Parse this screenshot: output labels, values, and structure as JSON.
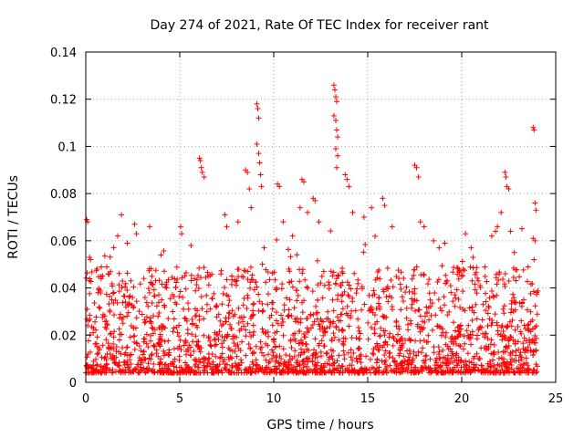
{
  "chart_data": {
    "type": "scatter",
    "title": "Day 274 of 2021, Rate Of TEC Index for receiver rant",
    "xlabel": "GPS time / hours",
    "ylabel": "ROTI / TECUs",
    "xlim": [
      0,
      25
    ],
    "ylim": [
      0,
      0.14
    ],
    "xticks": [
      "0",
      "5",
      "10",
      "15",
      "20",
      "25"
    ],
    "yticks": [
      "0",
      "0.02",
      "0.04",
      "0.06",
      "0.08",
      "0.1",
      "0.12",
      "0.14"
    ],
    "grid": true,
    "marker": "plus",
    "color": "#ff0000",
    "series": [
      {
        "name": "ROTI",
        "points": [
          [
            0.05,
            0.069
          ],
          [
            0.1,
            0.068
          ],
          [
            0.2,
            0.053
          ],
          [
            0.25,
            0.052
          ],
          [
            0.6,
            0.048
          ],
          [
            1.2,
            0.046
          ],
          [
            1.7,
            0.062
          ],
          [
            1.9,
            0.071
          ],
          [
            2.6,
            0.067
          ],
          [
            2.7,
            0.063
          ],
          [
            3.4,
            0.066
          ],
          [
            4.0,
            0.054
          ],
          [
            5.05,
            0.066
          ],
          [
            5.1,
            0.063
          ],
          [
            5.6,
            0.058
          ],
          [
            6.05,
            0.095
          ],
          [
            6.1,
            0.094
          ],
          [
            6.15,
            0.091
          ],
          [
            6.2,
            0.089
          ],
          [
            6.3,
            0.087
          ],
          [
            7.4,
            0.071
          ],
          [
            7.5,
            0.066
          ],
          [
            8.1,
            0.068
          ],
          [
            8.5,
            0.09
          ],
          [
            8.6,
            0.089
          ],
          [
            8.7,
            0.082
          ],
          [
            8.8,
            0.074
          ],
          [
            9.1,
            0.118
          ],
          [
            9.15,
            0.116
          ],
          [
            9.2,
            0.112
          ],
          [
            9.1,
            0.101
          ],
          [
            9.2,
            0.097
          ],
          [
            9.25,
            0.093
          ],
          [
            9.3,
            0.088
          ],
          [
            9.35,
            0.083
          ],
          [
            10.2,
            0.084
          ],
          [
            10.3,
            0.083
          ],
          [
            10.5,
            0.068
          ],
          [
            11.0,
            0.062
          ],
          [
            11.4,
            0.074
          ],
          [
            11.5,
            0.086
          ],
          [
            11.6,
            0.085
          ],
          [
            11.8,
            0.072
          ],
          [
            12.1,
            0.078
          ],
          [
            12.2,
            0.077
          ],
          [
            12.4,
            0.068
          ],
          [
            13.2,
            0.126
          ],
          [
            13.25,
            0.124
          ],
          [
            13.3,
            0.121
          ],
          [
            13.35,
            0.119
          ],
          [
            13.2,
            0.113
          ],
          [
            13.3,
            0.111
          ],
          [
            13.35,
            0.107
          ],
          [
            13.4,
            0.104
          ],
          [
            13.3,
            0.099
          ],
          [
            13.4,
            0.096
          ],
          [
            13.35,
            0.091
          ],
          [
            13.8,
            0.088
          ],
          [
            13.9,
            0.086
          ],
          [
            14.0,
            0.083
          ],
          [
            14.2,
            0.072
          ],
          [
            14.8,
            0.07
          ],
          [
            15.2,
            0.074
          ],
          [
            15.8,
            0.078
          ],
          [
            15.9,
            0.075
          ],
          [
            16.3,
            0.066
          ],
          [
            17.5,
            0.092
          ],
          [
            17.6,
            0.091
          ],
          [
            17.7,
            0.087
          ],
          [
            17.8,
            0.068
          ],
          [
            18.0,
            0.066
          ],
          [
            18.5,
            0.06
          ],
          [
            18.8,
            0.057
          ],
          [
            19.1,
            0.059
          ],
          [
            20.2,
            0.063
          ],
          [
            20.5,
            0.057
          ],
          [
            20.6,
            0.053
          ],
          [
            21.6,
            0.062
          ],
          [
            21.8,
            0.064
          ],
          [
            21.9,
            0.066
          ],
          [
            22.1,
            0.072
          ],
          [
            22.3,
            0.089
          ],
          [
            22.35,
            0.087
          ],
          [
            22.4,
            0.083
          ],
          [
            22.5,
            0.082
          ],
          [
            22.6,
            0.064
          ],
          [
            22.8,
            0.055
          ],
          [
            23.8,
            0.108
          ],
          [
            23.85,
            0.107
          ],
          [
            23.9,
            0.076
          ],
          [
            23.95,
            0.073
          ],
          [
            23.8,
            0.061
          ],
          [
            23.9,
            0.06
          ],
          [
            23.85,
            0.052
          ]
        ]
      }
    ]
  }
}
